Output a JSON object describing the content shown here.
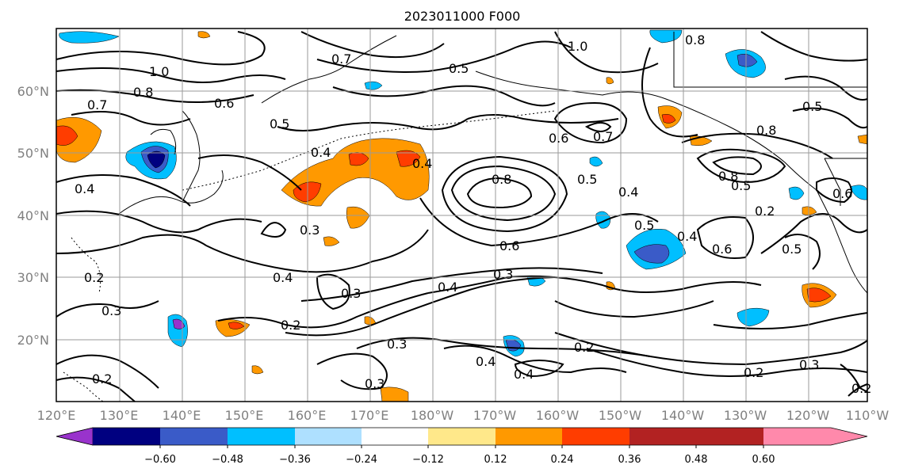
{
  "figure": {
    "title": "2023011000 F000"
  },
  "axes": {
    "lat_labels": [
      "60°N",
      "50°N",
      "40°N",
      "30°N",
      "20°N"
    ],
    "lon_labels": [
      "120°E",
      "130°E",
      "140°E",
      "150°E",
      "160°E",
      "170°E",
      "180°W",
      "170°W",
      "160°W",
      "150°W",
      "140°W",
      "130°W",
      "120°W",
      "110°W"
    ]
  },
  "colorbar": {
    "tick_labels": [
      "−0.60",
      "−0.48",
      "−0.36",
      "−0.24",
      "−0.12",
      "0.12",
      "0.24",
      "0.36",
      "0.48",
      "0.60"
    ],
    "colors": [
      "#9933cc",
      "#000080",
      "#3a5bc8",
      "#00bfff",
      "#aee0ff",
      "#ffffff",
      "#ffe88a",
      "#ff9900",
      "#ff3d00",
      "#b22222",
      "#ff89ab"
    ]
  },
  "contour_labels": [
    {
      "id": "c1",
      "text": "0.7"
    },
    {
      "id": "c2",
      "text": "1.0"
    },
    {
      "id": "c3",
      "text": "0.8"
    },
    {
      "id": "c4",
      "text": "0.6"
    },
    {
      "id": "c5",
      "text": "0.7"
    },
    {
      "id": "c6",
      "text": "0.5"
    },
    {
      "id": "c7",
      "text": "1.0"
    },
    {
      "id": "c8",
      "text": "0.8"
    },
    {
      "id": "c9",
      "text": "0.5"
    },
    {
      "id": "c10",
      "text": "0.5"
    },
    {
      "id": "c11",
      "text": "0.4"
    },
    {
      "id": "c12",
      "text": "0.4"
    },
    {
      "id": "c13",
      "text": "0.4"
    },
    {
      "id": "c14",
      "text": "0.8"
    },
    {
      "id": "c15",
      "text": "0.6"
    },
    {
      "id": "c16",
      "text": "0.7"
    },
    {
      "id": "c17",
      "text": "0.8"
    },
    {
      "id": "c18",
      "text": "0.5"
    },
    {
      "id": "c19",
      "text": "0.4"
    },
    {
      "id": "c20",
      "text": "0.8"
    },
    {
      "id": "c21",
      "text": "0.5"
    },
    {
      "id": "c22",
      "text": "0.6"
    },
    {
      "id": "c23",
      "text": "0.2"
    },
    {
      "id": "c24",
      "text": "0.5"
    },
    {
      "id": "c25",
      "text": "0.4"
    },
    {
      "id": "c26",
      "text": "0.6"
    },
    {
      "id": "c27",
      "text": "0.5"
    },
    {
      "id": "c28",
      "text": "0.6"
    },
    {
      "id": "c29",
      "text": "0.4"
    },
    {
      "id": "c30",
      "text": "0.3"
    },
    {
      "id": "c31",
      "text": "0.4"
    },
    {
      "id": "c32",
      "text": "0.3"
    },
    {
      "id": "c33",
      "text": "0.2"
    },
    {
      "id": "c34",
      "text": "0.2"
    },
    {
      "id": "c35",
      "text": "0.3"
    },
    {
      "id": "c36",
      "text": "0.3"
    },
    {
      "id": "c37",
      "text": "0.3"
    },
    {
      "id": "c38",
      "text": "0.4"
    },
    {
      "id": "c39",
      "text": "0.4"
    },
    {
      "id": "c40",
      "text": "0.3"
    },
    {
      "id": "c41",
      "text": "0.2"
    },
    {
      "id": "c42",
      "text": "0.3"
    },
    {
      "id": "c43",
      "text": "0.2"
    },
    {
      "id": "c44",
      "text": "0.2"
    },
    {
      "id": "c45",
      "text": "0.2"
    }
  ]
}
